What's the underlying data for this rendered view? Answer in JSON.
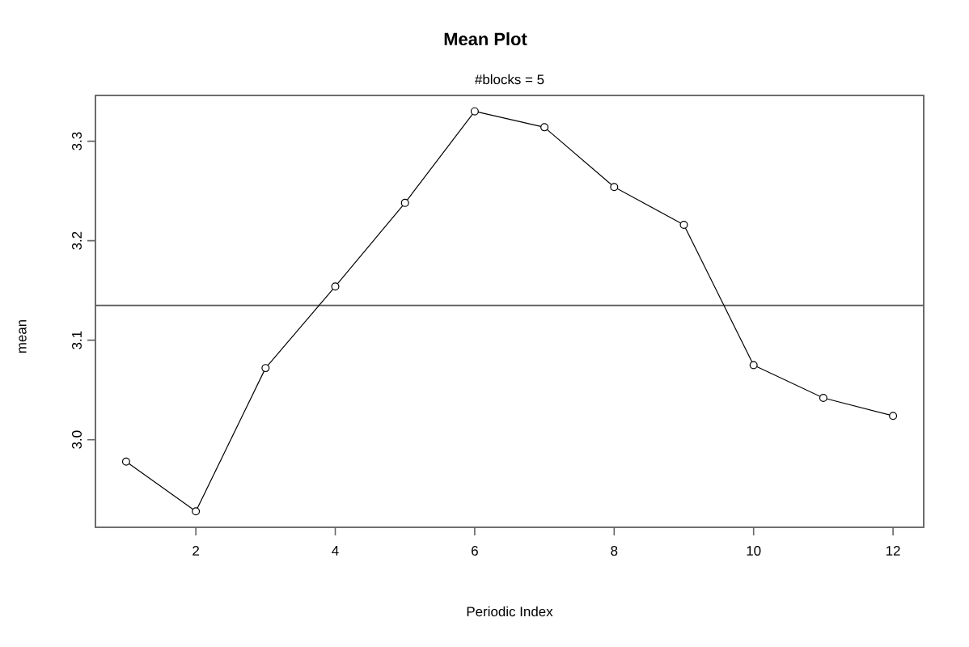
{
  "chart_data": {
    "type": "line",
    "title": "Mean Plot",
    "subtitle": "#blocks =  5",
    "xlabel": "Periodic Index",
    "ylabel": "mean",
    "x": [
      1,
      2,
      3,
      4,
      5,
      6,
      7,
      8,
      9,
      10,
      11,
      12
    ],
    "series": [
      {
        "color": "#000000",
        "values": [
          2.978,
          2.928,
          3.072,
          3.154,
          3.238,
          3.33,
          3.314,
          3.254,
          3.216,
          3.075,
          3.042,
          3.024
        ]
      }
    ],
    "marker": "circle",
    "line_style": "solid",
    "xlim": [
      0.56,
      12.44
    ],
    "ylim": [
      2.912,
      3.346
    ],
    "xticks": [
      2,
      4,
      6,
      8,
      10,
      12
    ],
    "yticks": [
      {
        "value": 3.0,
        "label": "3.0"
      },
      3.1,
      3.2,
      3.3
    ],
    "ref_lines": [
      {
        "axis": "y",
        "value": 3.135,
        "color": "#555555"
      }
    ]
  }
}
